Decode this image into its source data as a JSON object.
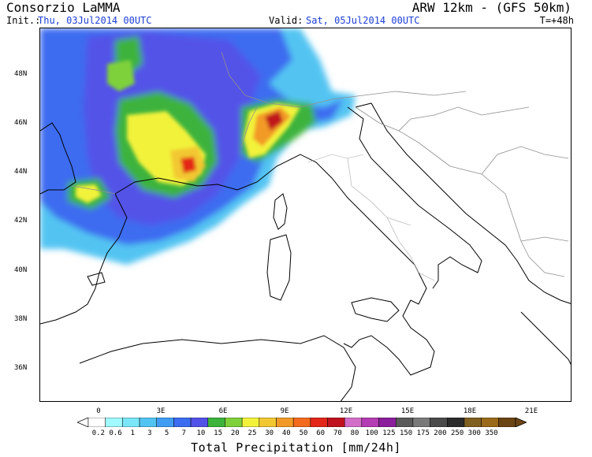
{
  "header": {
    "org": "Consorzio LaMMA",
    "model": "ARW 12km - (GFS 50km)",
    "init_label": "Init.:",
    "init_value": "Thu, 03Jul2014 00UTC",
    "valid_label": "Valid:",
    "valid_value": "Sat, 05Jul2014 00UTC",
    "lead": "T=+48h"
  },
  "map": {
    "lat_labels": [
      "48N",
      "46N",
      "44N",
      "42N",
      "40N",
      "38N",
      "36N"
    ],
    "lon_labels": [
      "0",
      "3E",
      "6E",
      "9E",
      "12E",
      "15E",
      "18E",
      "21E"
    ]
  },
  "legend": {
    "title": "Total Precipitation [mm/24h]",
    "levels": [
      "0.2",
      "0.6",
      "1",
      "3",
      "5",
      "7",
      "10",
      "15",
      "20",
      "25",
      "30",
      "40",
      "50",
      "60",
      "70",
      "80",
      "100",
      "125",
      "150",
      "175",
      "200",
      "250",
      "300",
      "350"
    ],
    "colors": [
      "#9ff9ff",
      "#7ae6f7",
      "#52c4f2",
      "#3f9cf2",
      "#3c6cf0",
      "#5252e8",
      "#3cb33c",
      "#7fd13b",
      "#f2f23b",
      "#f2c832",
      "#f29a28",
      "#f26b1f",
      "#e32619",
      "#c0121e",
      "#d36ec8",
      "#b43cb4",
      "#8a1e9b",
      "#5a5a5a",
      "#7a7a7a",
      "#4a4a4a",
      "#2b2b2b",
      "#806020",
      "#9a6a1a",
      "#6b4414"
    ]
  }
}
